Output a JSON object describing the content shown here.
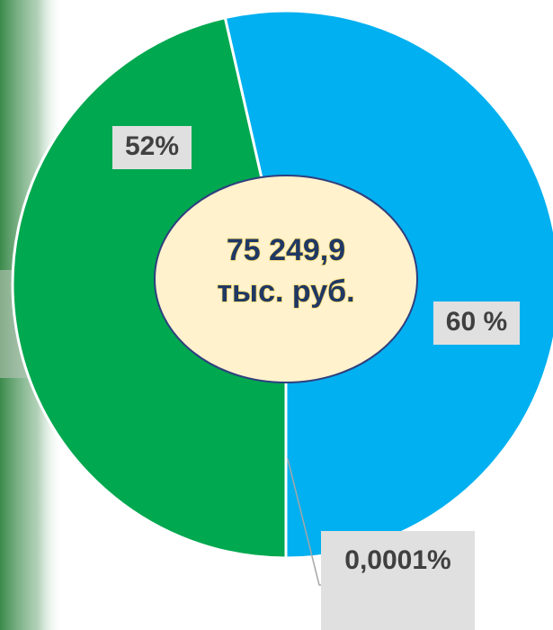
{
  "chart_data": {
    "type": "pie",
    "values": [
      52,
      60,
      0.0001
    ],
    "value_labels": [
      "52%",
      "60 %",
      "0,0001%"
    ],
    "colors": [
      "#00a84f",
      "#00b0f0",
      "#ffffff"
    ],
    "center_label": [
      "75 249,9",
      "тыс. руб."
    ]
  }
}
